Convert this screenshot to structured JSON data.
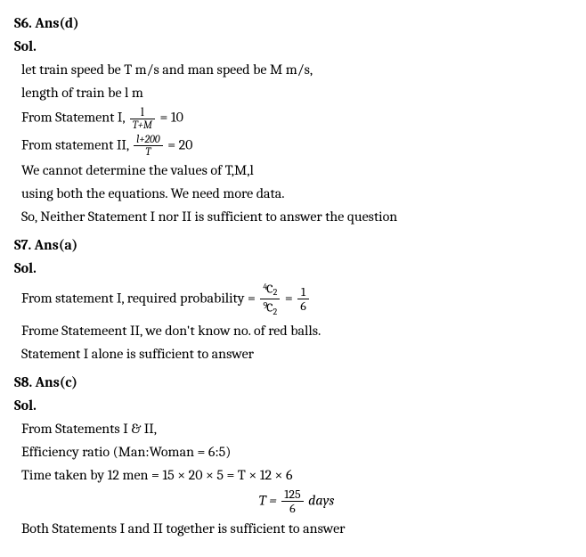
{
  "s6": {
    "header": "S6. Ans(d)",
    "sol_label": "Sol.",
    "line1": "let train speed be T m/s and man speed be M m/s,",
    "line2": "length of train be l m",
    "stmt1_prefix": "From Statement I, ",
    "frac1_num": "l",
    "frac1_den": "T+M",
    "stmt1_eq": " = 10",
    "stmt2_prefix": "From statement II, ",
    "frac2_num": "l+200",
    "frac2_den": "T",
    "stmt2_eq": " = 20",
    "line5": "We cannot determine the values of T,M,l",
    "line6": "using both the equations. We need more data.",
    "line7": "So, Neither Statement I nor II is sufficient to answer the question"
  },
  "s7": {
    "header": "S7. Ans(a)",
    "sol_label": "Sol.",
    "stmt1_prefix": "From statement I, required probability =",
    "frac_num_pre": "4",
    "frac_num_c": "C",
    "frac_num_sub": "2",
    "frac_den_pre": "9",
    "frac_den_c": "C",
    "frac_den_sub": "2",
    "mid_eq": " = ",
    "frac2_num": "1",
    "frac2_den": "6",
    "line2": "Frome Statemeent II, we don't know no. of red balls.",
    "line3": "Statement I alone is sufficient to answer"
  },
  "s8": {
    "header": "S8. Ans(c)",
    "sol_label": "Sol.",
    "line1": "From Statements I & II,",
    "line2": "Efficiency ratio (Man:Woman = 6:5)",
    "line3": "Time taken by 12 men = 15 × 20 × 5 = T × 12 × 6",
    "eq_prefix": "T = ",
    "frac_num": "125",
    "frac_den": "6",
    "eq_suffix": " days",
    "line5": "Both Statements I and II together is sufficient to answer"
  }
}
